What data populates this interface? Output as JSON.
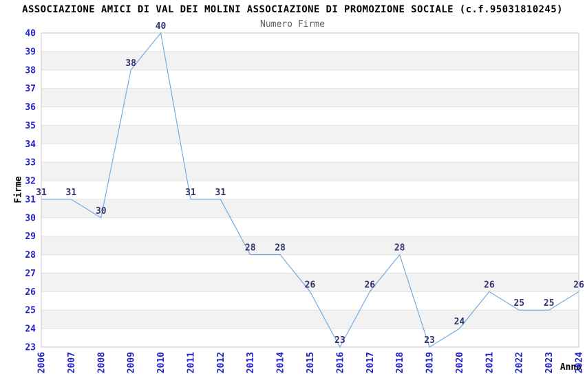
{
  "header": {
    "title": "ASSOCIAZIONE AMICI DI VAL DEI MOLINI ASSOCIAZIONE DI PROMOZIONE SOCIALE (c.f.95031810245)",
    "subtitle": "Numero Firme"
  },
  "chart_data": {
    "type": "line",
    "title": "Numero Firme",
    "xlabel": "Anno",
    "ylabel": "Firme",
    "categories": [
      "2006",
      "2007",
      "2008",
      "2009",
      "2010",
      "2011",
      "2012",
      "2013",
      "2014",
      "2015",
      "2016",
      "2017",
      "2018",
      "2019",
      "2020",
      "2021",
      "2022",
      "2023",
      "2024"
    ],
    "values": [
      31,
      31,
      30,
      38,
      40,
      31,
      31,
      28,
      28,
      26,
      23,
      26,
      28,
      23,
      24,
      26,
      25,
      25,
      26
    ],
    "ylim": [
      23,
      40
    ],
    "yticks": [
      23,
      24,
      25,
      26,
      27,
      28,
      29,
      30,
      31,
      32,
      33,
      34,
      35,
      36,
      37,
      38,
      39,
      40
    ],
    "grid": "horizontal-bands-alternating",
    "legend_position": "none",
    "data_labels_visible": true,
    "colors": {
      "line": "#74aae1",
      "tick_label": "#2222cc",
      "data_label": "#333370",
      "band": "#f2f2f2",
      "gridline": "#e2e2e2",
      "border": "#c9c9c9",
      "title": "#000000",
      "subtitle": "#606060"
    }
  }
}
